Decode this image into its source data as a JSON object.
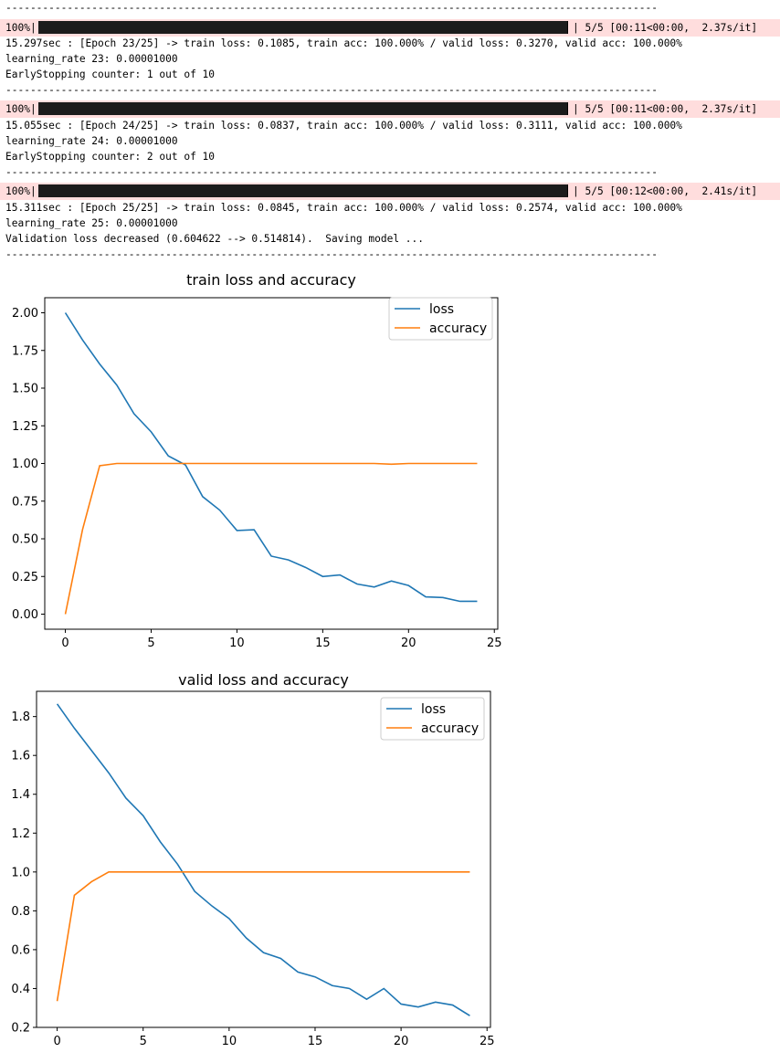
{
  "log": {
    "separator": "-------------------------------------------------------------------------------------------------------------------------------",
    "blocks": [
      {
        "progress_pct": "100%|",
        "progress_meta": "| 5/5 [00:11<00:00,  2.37s/it]",
        "progress_fraction": 1.0,
        "summary": "15.297sec : [Epoch 23/25] -> train loss: 0.1085, train acc: 100.000% / valid loss: 0.3270, valid acc: 100.000%",
        "lr": "learning_rate 23: 0.00001000",
        "status": "EarlyStopping counter: 1 out of 10"
      },
      {
        "progress_pct": "100%|",
        "progress_meta": "| 5/5 [00:11<00:00,  2.37s/it]",
        "progress_fraction": 1.0,
        "summary": "15.055sec : [Epoch 24/25] -> train loss: 0.0837, train acc: 100.000% / valid loss: 0.3111, valid acc: 100.000%",
        "lr": "learning_rate 24: 0.00001000",
        "status": "EarlyStopping counter: 2 out of 10"
      },
      {
        "progress_pct": "100%|",
        "progress_meta": "| 5/5 [00:12<00:00,  2.41s/it]",
        "progress_fraction": 1.0,
        "summary": "15.311sec : [Epoch 25/25] -> train loss: 0.0845, train acc: 100.000% / valid loss: 0.2574, valid acc: 100.000%",
        "lr": "learning_rate 25: 0.00001000",
        "status": "Validation loss decreased (0.604622 --> 0.514814).  Saving model ..."
      }
    ]
  },
  "colors": {
    "loss": "#1f77b4",
    "accuracy": "#ff7f0e",
    "progress_bg": "#ffdddd",
    "progress_bar": "#1c1c1c"
  },
  "chart_data": [
    {
      "type": "line",
      "title": "train loss and accuracy",
      "xlabel": "",
      "ylabel": "",
      "xlim": [
        -1.2,
        25.2
      ],
      "ylim": [
        -0.1,
        2.1
      ],
      "xticks": [
        "0",
        "5",
        "10",
        "15",
        "20",
        "25"
      ],
      "yticks": [
        "0.00",
        "0.25",
        "0.50",
        "0.75",
        "1.00",
        "1.25",
        "1.50",
        "1.75",
        "2.00"
      ],
      "legend_position": "top-right",
      "grid": false,
      "x": [
        0,
        1,
        2,
        3,
        4,
        5,
        6,
        7,
        8,
        9,
        10,
        11,
        12,
        13,
        14,
        15,
        16,
        17,
        18,
        19,
        20,
        21,
        22,
        23,
        24
      ],
      "series": [
        {
          "name": "loss",
          "values": [
            2.0,
            1.82,
            1.66,
            1.52,
            1.33,
            1.21,
            1.05,
            0.99,
            0.78,
            0.69,
            0.555,
            0.56,
            0.385,
            0.36,
            0.31,
            0.25,
            0.26,
            0.2,
            0.18,
            0.22,
            0.19,
            0.115,
            0.11,
            0.085,
            0.085
          ]
        },
        {
          "name": "accuracy",
          "values": [
            0.0,
            0.56,
            0.985,
            1.0,
            1.0,
            1.0,
            1.0,
            1.0,
            1.0,
            1.0,
            1.0,
            1.0,
            1.0,
            1.0,
            1.0,
            1.0,
            1.0,
            1.0,
            1.0,
            0.995,
            1.0,
            1.0,
            1.0,
            1.0,
            1.0
          ]
        }
      ]
    },
    {
      "type": "line",
      "title": "valid loss and accuracy",
      "xlabel": "",
      "ylabel": "",
      "xlim": [
        -1.2,
        25.2
      ],
      "ylim": [
        0.2,
        1.93
      ],
      "xticks": [
        "0",
        "5",
        "10",
        "15",
        "20",
        "25"
      ],
      "yticks": [
        "0.2",
        "0.4",
        "0.6",
        "0.8",
        "1.0",
        "1.2",
        "1.4",
        "1.6",
        "1.8"
      ],
      "legend_position": "top-right",
      "grid": false,
      "x": [
        0,
        1,
        2,
        3,
        4,
        5,
        6,
        7,
        8,
        9,
        10,
        11,
        12,
        13,
        14,
        15,
        16,
        17,
        18,
        19,
        20,
        21,
        22,
        23,
        24
      ],
      "series": [
        {
          "name": "loss",
          "values": [
            1.865,
            1.74,
            1.625,
            1.51,
            1.38,
            1.29,
            1.155,
            1.04,
            0.9,
            0.825,
            0.76,
            0.66,
            0.585,
            0.555,
            0.485,
            0.46,
            0.415,
            0.4,
            0.345,
            0.4,
            0.32,
            0.305,
            0.33,
            0.315,
            0.26
          ]
        },
        {
          "name": "accuracy",
          "values": [
            0.335,
            0.88,
            0.95,
            1.0,
            1.0,
            1.0,
            1.0,
            1.0,
            1.0,
            1.0,
            1.0,
            1.0,
            1.0,
            1.0,
            1.0,
            1.0,
            1.0,
            1.0,
            1.0,
            1.0,
            1.0,
            1.0,
            1.0,
            1.0,
            1.0
          ]
        }
      ]
    }
  ]
}
